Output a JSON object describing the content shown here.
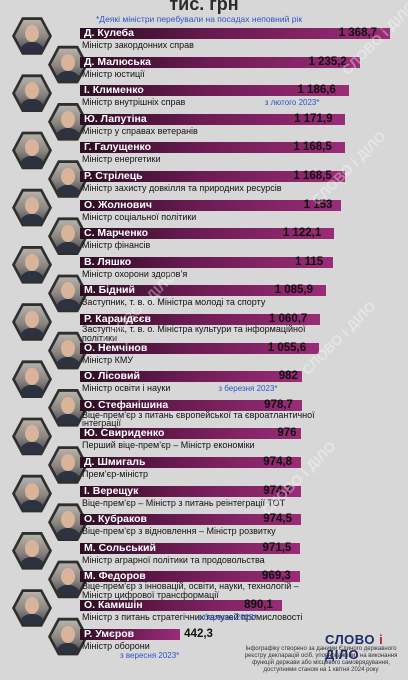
{
  "header": {
    "title": "тис. грн",
    "note": "*Деякі міністри перебували на посадах неповний рік"
  },
  "colors": {
    "bar_dark": "#2b0d22",
    "bar_light": "#9a2c77",
    "note": "#2f52c8",
    "background": "#d7d7d7"
  },
  "watermark": "СЛОВО і ДІЛО",
  "logo": {
    "part1": "СЛОВО",
    "part2": "і",
    "part3": "ДІЛО"
  },
  "footer": "Інфографіку створено за даними Єдиного державного реєстру декларацій осіб, уповноважених на виконання функцій держави або місцевого самоврядування, доступними станом на 1 квітня 2024 року",
  "chart_data": {
    "type": "bar",
    "title": "тис. грн",
    "unit": "тис. грн",
    "rows": [
      {
        "name": "Д. Кулеба",
        "role": "Міністр закордонних справ",
        "value": 1368.7,
        "label": "1 368,7",
        "note": ""
      },
      {
        "name": "Д. Малюська",
        "role": "Міністр юстиції",
        "value": 1235.2,
        "label": "1 235,2",
        "note": ""
      },
      {
        "name": "І. Клименко",
        "role": "Міністр внутрішніх справ",
        "value": 1186.6,
        "label": "1 186,6",
        "note": "з лютого 2023*"
      },
      {
        "name": "Ю. Лапутіна",
        "role": "Міністр у справах ветеранів",
        "value": 1171.9,
        "label": "1 171,9",
        "note": ""
      },
      {
        "name": "Г. Галущенко",
        "role": "Міністр енергетики",
        "value": 1168.5,
        "label": "1 168,5",
        "note": ""
      },
      {
        "name": "Р. Стрілець",
        "role": "Міністр захисту довкілля та природних ресурсів",
        "value": 1168.5,
        "label": "1 168,5",
        "note": ""
      },
      {
        "name": "О. Жолнович",
        "role": "Міністр соціальної політики",
        "value": 1153,
        "label": "1 153",
        "note": ""
      },
      {
        "name": "С. Марченко",
        "role": "Міністр фінансів",
        "value": 1122.1,
        "label": "1 122,1",
        "note": ""
      },
      {
        "name": "В. Ляшко",
        "role": "Міністр охорони здоров’я",
        "value": 1115,
        "label": "1 115",
        "note": ""
      },
      {
        "name": "М. Бідний",
        "role": "Заступник, т. в. о. Міністра молоді та спорту",
        "value": 1085.9,
        "label": "1 085,9",
        "note": ""
      },
      {
        "name": "Р. Карандєєв",
        "role": "Заступник, т. в. о. Міністра культури та інформаційної політики",
        "value": 1060.7,
        "label": "1 060,7",
        "note": ""
      },
      {
        "name": "О. Немчінов",
        "role": "Міністр КМУ",
        "value": 1055.6,
        "label": "1 055,6",
        "note": ""
      },
      {
        "name": "О. Лісовий",
        "role": "Міністр освіти і науки",
        "value": 982,
        "label": "982",
        "note": "з березня 2023*"
      },
      {
        "name": "О. Стефанішина",
        "role": "Віце-прем’єр з питань європейської та євроатлантичної інтеграції",
        "value": 978.7,
        "label": "978,7",
        "note": ""
      },
      {
        "name": "Ю. Свириденко",
        "role": "Перший віце-прем’єр – Міністр економіки",
        "value": 976,
        "label": "976",
        "note": ""
      },
      {
        "name": "Д. Шмигаль",
        "role": "Прем’єр-міністр",
        "value": 974.8,
        "label": "974,8",
        "note": ""
      },
      {
        "name": "І. Верещук",
        "role": "Віце-прем’єр – Міністр з питань реінтеграції ТОТ",
        "value": 974.7,
        "label": "974,7",
        "note": ""
      },
      {
        "name": "О. Кубраков",
        "role": "Віце-прем’єр з відновлення – Міністр розвитку",
        "value": 974.5,
        "label": "974,5",
        "note": ""
      },
      {
        "name": "М. Сольський",
        "role": "Міністр аграрної політики та продовольства",
        "value": 971.5,
        "label": "971,5",
        "note": ""
      },
      {
        "name": "М. Федоров",
        "role": "Віце-прем’єр з інновацій, освіти, науки, технологій – Міністр цифрової трансформації",
        "value": 969.3,
        "label": "969,3",
        "note": ""
      },
      {
        "name": "О. Камишін",
        "role": "Міністр з питань стратегічних галузей промисловості",
        "value": 890.1,
        "label": "890,1",
        "note": "з березня 2023*"
      },
      {
        "name": "Р. Умєров",
        "role": "Міністр оборони",
        "value": 442.3,
        "label": "442,3",
        "note": "з вересня 2023*"
      }
    ]
  }
}
